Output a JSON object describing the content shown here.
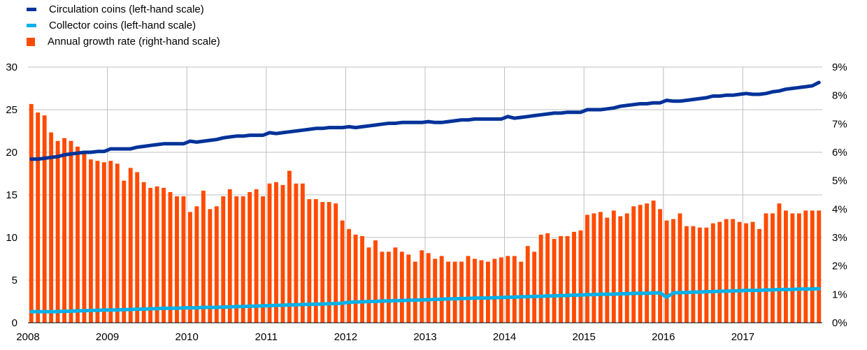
{
  "legend": {
    "items": [
      {
        "label": "Circulation coins (left-hand scale)",
        "color": "#003299",
        "kind": "line"
      },
      {
        "label": "Collector coins (left-hand scale)",
        "color": "#00B1EA",
        "kind": "line"
      },
      {
        "label": "Annual growth rate (right-hand scale)",
        "color": "#FF4B00",
        "kind": "bar"
      }
    ]
  },
  "chart_data": {
    "type": "bar",
    "title": "",
    "xlabel": "",
    "ylabel": "",
    "x_tick_labels": [
      "2008",
      "2009",
      "2010",
      "2011",
      "2012",
      "2013",
      "2014",
      "2015",
      "2016",
      "2017"
    ],
    "x_range": [
      "2008-01",
      "2017-12"
    ],
    "ylim_left": [
      0,
      30
    ],
    "ylim_right": [
      0,
      9
    ],
    "left_ticks": [
      "0",
      "5",
      "10",
      "15",
      "20",
      "25",
      "30"
    ],
    "right_ticks": [
      "0%",
      "1%",
      "2%",
      "3%",
      "4%",
      "5%",
      "6%",
      "7%",
      "8%",
      "9%"
    ],
    "grid": true,
    "legend_position": "top-left",
    "series": [
      {
        "name": "Annual growth rate (right-hand scale)",
        "type": "bar",
        "axis": "right",
        "color": "#FF4B00",
        "unit": "%",
        "values": [
          7.7,
          7.4,
          7.3,
          6.7,
          6.4,
          6.5,
          6.4,
          6.2,
          6.0,
          5.75,
          5.7,
          5.65,
          5.7,
          5.6,
          5.0,
          5.45,
          5.3,
          4.95,
          4.75,
          4.8,
          4.75,
          4.6,
          4.45,
          4.45,
          3.9,
          4.1,
          4.65,
          4.0,
          4.1,
          4.45,
          4.7,
          4.45,
          4.45,
          4.6,
          4.7,
          4.45,
          4.9,
          4.95,
          4.85,
          5.35,
          4.9,
          4.9,
          4.35,
          4.35,
          4.25,
          4.25,
          4.2,
          3.6,
          3.3,
          3.1,
          3.05,
          2.65,
          2.9,
          2.5,
          2.5,
          2.65,
          2.5,
          2.4,
          2.15,
          2.55,
          2.45,
          2.25,
          2.35,
          2.15,
          2.15,
          2.15,
          2.35,
          2.25,
          2.2,
          2.15,
          2.25,
          2.3,
          2.35,
          2.35,
          2.15,
          2.7,
          2.5,
          3.1,
          3.15,
          2.95,
          3.05,
          3.05,
          3.2,
          3.25,
          3.8,
          3.85,
          3.9,
          3.7,
          3.95,
          3.75,
          3.85,
          4.1,
          4.15,
          4.2,
          4.3,
          4.0,
          3.6,
          3.65,
          3.85,
          3.4,
          3.4,
          3.35,
          3.35,
          3.5,
          3.55,
          3.65,
          3.65,
          3.55,
          3.5,
          3.55,
          3.3,
          3.85,
          3.85,
          4.2,
          3.95,
          3.85,
          3.85,
          3.95,
          3.95,
          3.95
        ]
      },
      {
        "name": "Circulation coins (left-hand scale)",
        "type": "line",
        "axis": "left",
        "color": "#003299",
        "values": [
          19.2,
          19.2,
          19.3,
          19.4,
          19.5,
          19.7,
          19.8,
          19.9,
          20.0,
          20.0,
          20.1,
          20.1,
          20.4,
          20.4,
          20.4,
          20.4,
          20.6,
          20.7,
          20.8,
          20.9,
          21.0,
          21.0,
          21.0,
          21.0,
          21.3,
          21.2,
          21.3,
          21.4,
          21.5,
          21.7,
          21.8,
          21.9,
          21.9,
          22.0,
          22.0,
          22.0,
          22.3,
          22.2,
          22.3,
          22.4,
          22.5,
          22.6,
          22.7,
          22.8,
          22.8,
          22.9,
          22.9,
          22.9,
          23.0,
          22.9,
          23.0,
          23.1,
          23.2,
          23.3,
          23.4,
          23.4,
          23.5,
          23.5,
          23.5,
          23.5,
          23.6,
          23.5,
          23.5,
          23.6,
          23.7,
          23.8,
          23.8,
          23.9,
          23.9,
          23.9,
          23.9,
          23.9,
          24.2,
          24.0,
          24.1,
          24.2,
          24.3,
          24.4,
          24.5,
          24.6,
          24.6,
          24.7,
          24.7,
          24.7,
          25.0,
          25.0,
          25.0,
          25.1,
          25.2,
          25.4,
          25.5,
          25.6,
          25.7,
          25.7,
          25.8,
          25.8,
          26.1,
          26.0,
          26.0,
          26.1,
          26.2,
          26.3,
          26.4,
          26.6,
          26.6,
          26.7,
          26.7,
          26.8,
          26.9,
          26.8,
          26.8,
          26.9,
          27.1,
          27.2,
          27.4,
          27.5,
          27.6,
          27.7,
          27.8,
          28.2
        ]
      },
      {
        "name": "Collector coins (left-hand scale)",
        "type": "line",
        "axis": "left",
        "color": "#00B1EA",
        "values": [
          1.3,
          1.3,
          1.3,
          1.3,
          1.3,
          1.35,
          1.35,
          1.4,
          1.4,
          1.45,
          1.45,
          1.5,
          1.5,
          1.5,
          1.55,
          1.55,
          1.6,
          1.6,
          1.65,
          1.65,
          1.7,
          1.7,
          1.7,
          1.75,
          1.75,
          1.75,
          1.8,
          1.8,
          1.8,
          1.85,
          1.85,
          1.9,
          1.9,
          1.95,
          1.95,
          2.0,
          2.0,
          2.05,
          2.05,
          2.1,
          2.1,
          2.15,
          2.15,
          2.2,
          2.2,
          2.25,
          2.25,
          2.3,
          2.4,
          2.45,
          2.45,
          2.5,
          2.5,
          2.55,
          2.55,
          2.6,
          2.6,
          2.65,
          2.65,
          2.7,
          2.7,
          2.75,
          2.75,
          2.8,
          2.8,
          2.85,
          2.85,
          2.9,
          2.9,
          2.9,
          2.95,
          2.95,
          3.0,
          3.0,
          3.05,
          3.05,
          3.1,
          3.1,
          3.15,
          3.15,
          3.2,
          3.2,
          3.25,
          3.25,
          3.3,
          3.3,
          3.35,
          3.35,
          3.35,
          3.4,
          3.4,
          3.45,
          3.45,
          3.45,
          3.5,
          3.5,
          3.0,
          3.5,
          3.55,
          3.55,
          3.6,
          3.6,
          3.65,
          3.65,
          3.7,
          3.7,
          3.75,
          3.75,
          3.8,
          3.8,
          3.8,
          3.85,
          3.85,
          3.9,
          3.9,
          3.9,
          3.95,
          3.95,
          3.95,
          4.0
        ]
      }
    ]
  }
}
